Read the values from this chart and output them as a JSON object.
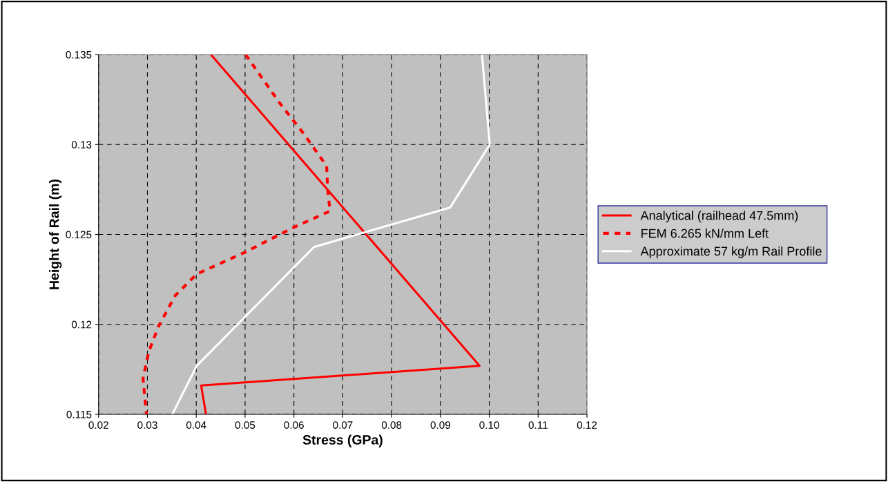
{
  "chart_data": {
    "type": "line",
    "xlabel": "Stress (GPa)",
    "ylabel": "Height of Rail (m)",
    "xlim": [
      0.02,
      0.12
    ],
    "xticks": [
      0.02,
      0.03,
      0.04,
      0.05,
      0.06,
      0.07,
      0.08,
      0.09,
      {
        "value": 0.1,
        "label": "0.10"
      },
      0.11,
      0.12
    ],
    "ylim": [
      0.115,
      0.135
    ],
    "yticks": [
      0.115,
      0.12,
      0.125,
      0.13,
      0.135
    ],
    "grid": true,
    "legend": "right",
    "marker": "none",
    "series": [
      {
        "name": "Analytical (railhead 47.5mm)",
        "color": "#ff0000",
        "line_style": "solid",
        "x": [
          0.043,
          0.098,
          0.041,
          0.042
        ],
        "values": [
          0.135,
          0.1177,
          0.1166,
          0.115
        ]
      },
      {
        "name": "FEM 6.265 kN/mm Left",
        "color": "#ff0000",
        "line_style": "dashed",
        "x": [
          0.0501,
          0.0571,
          0.062,
          0.0667,
          0.0669,
          0.0674,
          0.06,
          0.0499,
          0.0401,
          0.0357,
          0.0323,
          0.0303,
          0.0291,
          0.0298
        ],
        "values": [
          0.135,
          0.1323,
          0.1306,
          0.1288,
          0.1275,
          0.1263,
          0.1254,
          0.124,
          0.1228,
          0.1216,
          0.1199,
          0.1185,
          0.117,
          0.115
        ]
      },
      {
        "name": "Approximate 57 kg/m Rail Profile",
        "color": "#ffffff",
        "line_style": "solid",
        "x": [
          0.0985,
          0.1001,
          0.092,
          0.0641,
          0.0401,
          0.0351
        ],
        "values": [
          0.135,
          0.13,
          0.1265,
          0.1243,
          0.1177,
          0.115
        ]
      }
    ]
  }
}
